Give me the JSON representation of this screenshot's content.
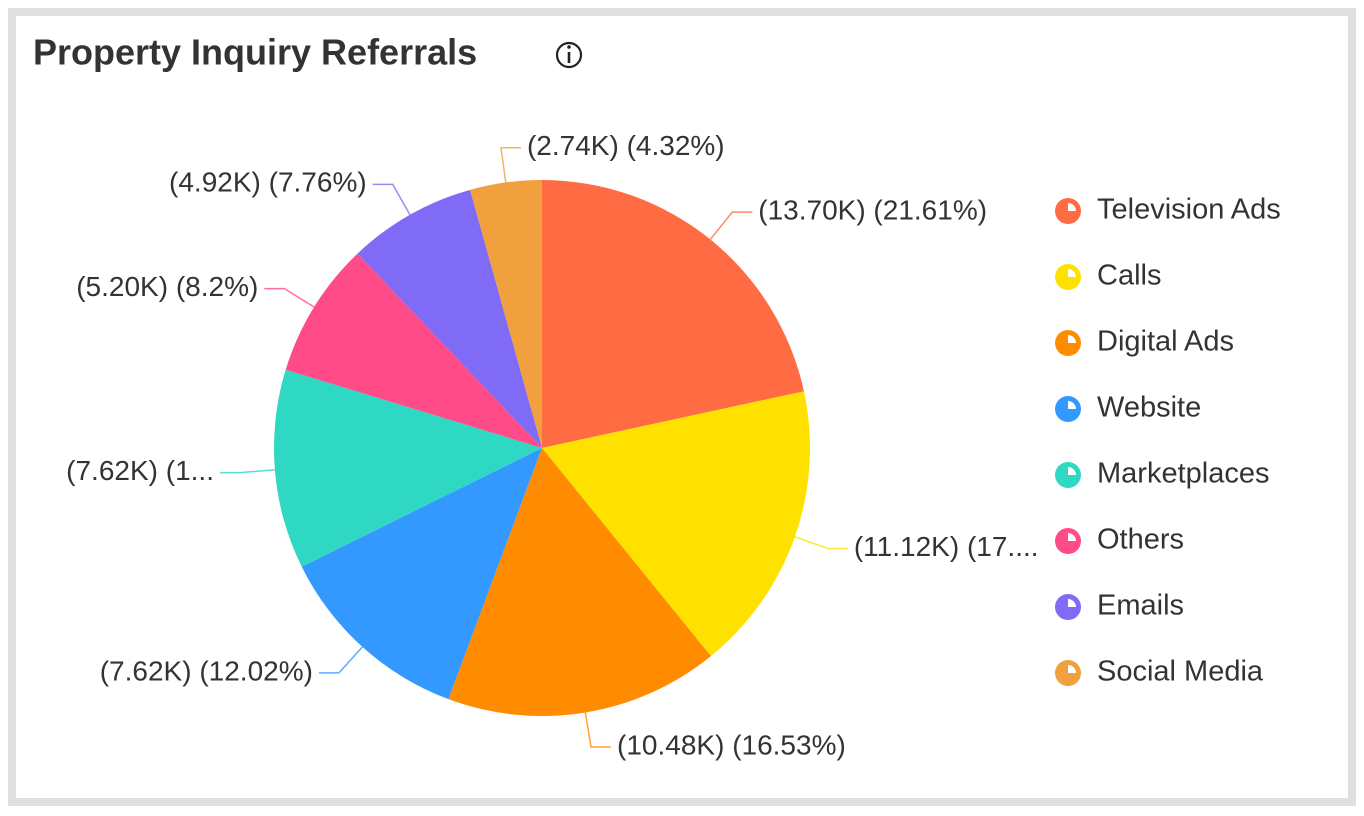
{
  "chart_data": {
    "type": "pie",
    "title": "Property Inquiry Referrals",
    "categories": [
      "Television Ads",
      "Calls",
      "Digital Ads",
      "Website",
      "Marketplaces",
      "Others",
      "Emails",
      "Social Media"
    ],
    "values": [
      13700,
      11120,
      10480,
      7620,
      7620,
      5200,
      4920,
      2740
    ],
    "value_labels": [
      "(13.70K) (21.61%)",
      "(11.12K) (17....",
      "(10.48K) (16.53%)",
      "(7.62K) (12.02%)",
      "(7.62K) (1...",
      "(5.20K) (8.2%)",
      "(4.92K) (7.76%)",
      "(2.74K) (4.32%)"
    ],
    "colors": [
      "#ff6b42",
      "#ffe100",
      "#ff8c00",
      "#3399ff",
      "#2ed8c3",
      "#ff4b87",
      "#7f6bf5",
      "#f0a03c"
    ],
    "legend": "right"
  }
}
